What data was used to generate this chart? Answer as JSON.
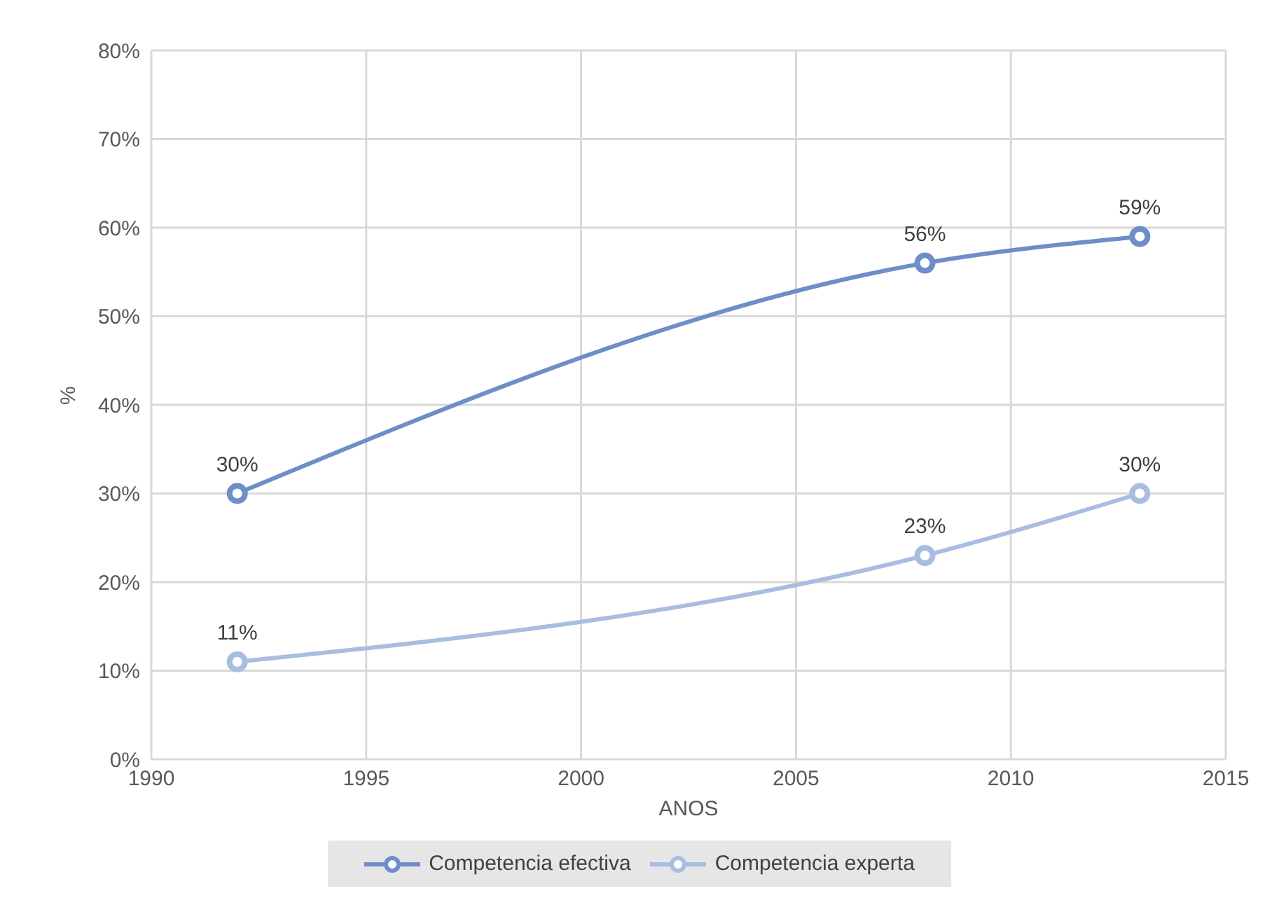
{
  "chart_data": {
    "type": "line",
    "xlabel": "ANOS",
    "ylabel": "%",
    "x": [
      1992,
      2008,
      2013
    ],
    "series": [
      {
        "name": "Competencia efectiva",
        "color": "#6d8ec6",
        "values": [
          30,
          56,
          59
        ],
        "value_labels": [
          "30%",
          "56%",
          "59%"
        ]
      },
      {
        "name": "Competencia experta",
        "color": "#a9bde3",
        "values": [
          11,
          23,
          30
        ],
        "value_labels": [
          "11%",
          "23%",
          "30%"
        ]
      }
    ],
    "xlim": [
      1990,
      2015
    ],
    "xticks": [
      1990,
      1995,
      2000,
      2005,
      2010,
      2015
    ],
    "ylim": [
      0,
      80
    ],
    "yticks": [
      {
        "value": 0,
        "label": "0%"
      },
      {
        "value": 10,
        "label": "10%"
      },
      {
        "value": 20,
        "label": "20%"
      },
      {
        "value": 30,
        "label": "30%"
      },
      {
        "value": 40,
        "label": "40%"
      },
      {
        "value": 50,
        "label": "50%"
      },
      {
        "value": 60,
        "label": "60%"
      },
      {
        "value": 70,
        "label": "70%"
      },
      {
        "value": 80,
        "label": "80%"
      }
    ],
    "grid": true,
    "legend": "bottom",
    "marker": "circle",
    "line_style": "solid"
  }
}
